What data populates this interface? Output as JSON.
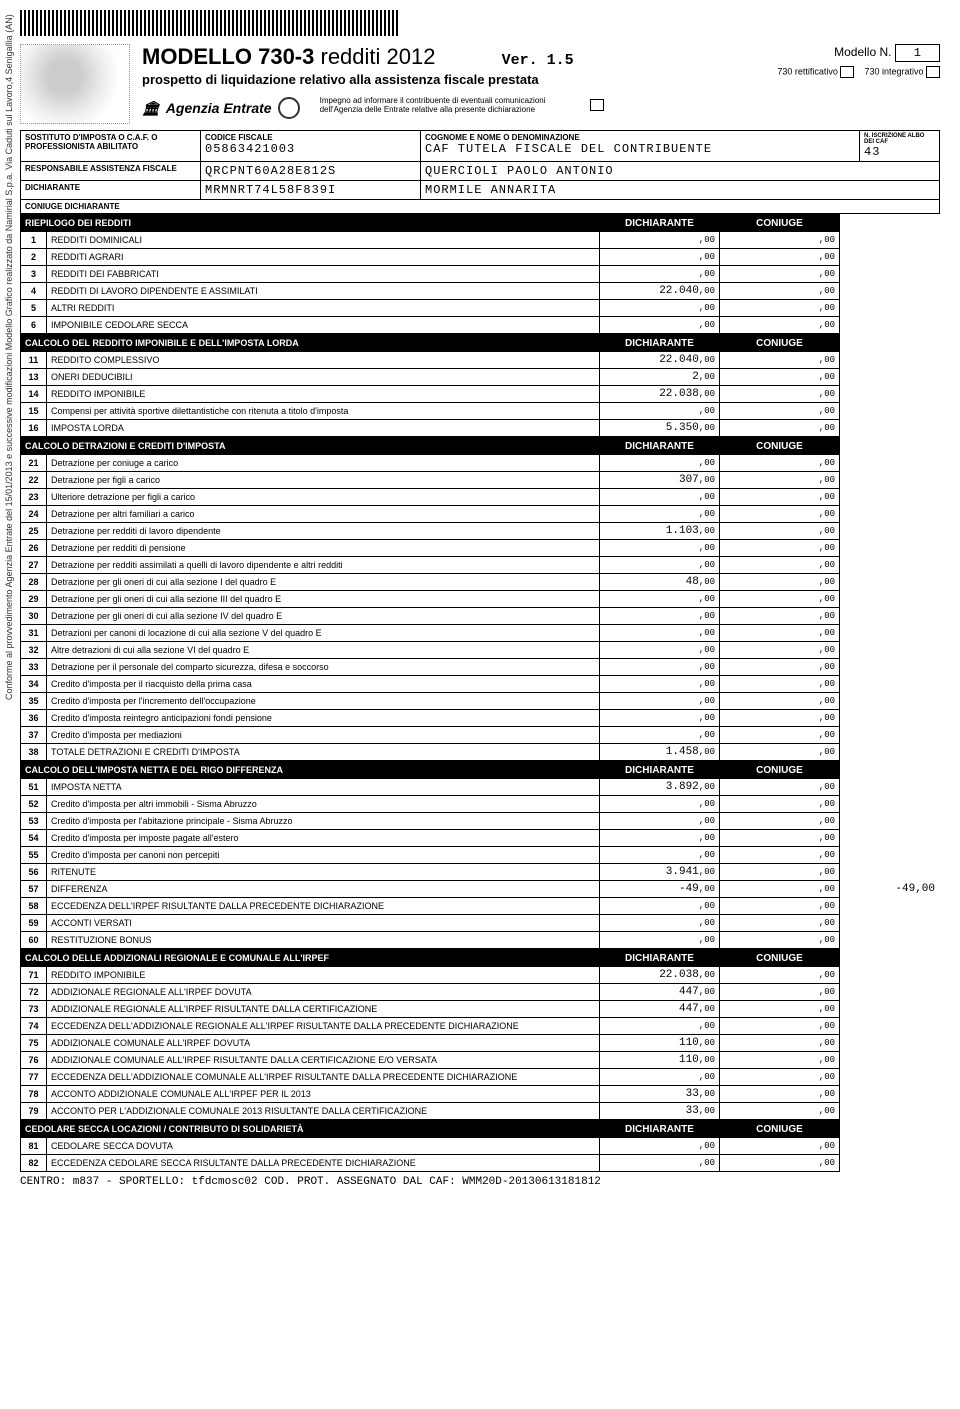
{
  "side_text": "Conforme al provvedimento Agenzia Entrate del 15/01/2013 e successive modificazioni   Modello Grafico realizzato da Namirial S.p.a. Via Caduti sul Lavoro,4 Senigallia (AN)",
  "title": {
    "a": "MODELLO 730-3",
    "b": "redditi 2012"
  },
  "subtitle": "prospetto di liquidazione relativo alla assistenza fiscale prestata",
  "agenzia": "Agenzia Entrate",
  "ver": "Ver. 1.5",
  "modello_n_lbl": "Modello N.",
  "modello_n_val": "1",
  "impegno": "Impegno ad informare il contribuente di eventuali comunicazioni dell'Agenzia delle Entrate relative alla presente dichiarazione",
  "rett_lbl": "730 rettificativo",
  "integ_lbl": "730 integrativo",
  "info": {
    "r1c1_lbl": "SOSTITUTO D'IMPOSTA O C.A.F. O PROFESSIONISTA ABILITATO",
    "r1c2_lbl": "CODICE FISCALE",
    "r1c2_val": "05863421003",
    "r1c3_lbl": "COGNOME E NOME O DENOMINAZIONE",
    "r1c3_val": "CAF TUTELA FISCALE DEL CONTRIBUENTE",
    "r1c4_lbl": "N. ISCRIZIONE ALBO DEI CAF",
    "r1c4_val": "43",
    "r2c1_lbl": "RESPONSABILE ASSISTENZA FISCALE",
    "r2c2_val": "QRCPNT60A28E812S",
    "r2c3_val": "QUERCIOLI PAOLO ANTONIO",
    "r3c1_lbl": "DICHIARANTE",
    "r3c2_val": "MRMNRT74L58F839I",
    "r3c3_val": "MORMILE ANNARITA",
    "r4c1_lbl": "CONIUGE DICHIARANTE"
  },
  "col_dich": "DICHIARANTE",
  "col_con": "CONIUGE",
  "sections": [
    {
      "title": "RIEPILOGO DEI REDDITI",
      "rows": [
        {
          "n": "1",
          "d": "REDDITI DOMINICALI",
          "a": ",00",
          "b": ",00"
        },
        {
          "n": "2",
          "d": "REDDITI AGRARI",
          "a": ",00",
          "b": ",00"
        },
        {
          "n": "3",
          "d": "REDDITI DEI FABBRICATI",
          "a": ",00",
          "b": ",00"
        },
        {
          "n": "4",
          "d": "REDDITI DI LAVORO DIPENDENTE E ASSIMILATI",
          "a": "22.040,00",
          "b": ",00"
        },
        {
          "n": "5",
          "d": "ALTRI REDDITI",
          "a": ",00",
          "b": ",00"
        },
        {
          "n": "6",
          "d": "IMPONIBILE CEDOLARE SECCA",
          "a": ",00",
          "b": ",00"
        }
      ]
    },
    {
      "title": "CALCOLO DEL REDDITO IMPONIBILE E DELL'IMPOSTA LORDA",
      "rows": [
        {
          "n": "11",
          "d": "REDDITO COMPLESSIVO",
          "a": "22.040,00",
          "b": ",00"
        },
        {
          "n": "13",
          "d": "ONERI DEDUCIBILI",
          "a": "2,00",
          "b": ",00"
        },
        {
          "n": "14",
          "d": "REDDITO IMPONIBILE",
          "a": "22.038,00",
          "b": ",00"
        },
        {
          "n": "15",
          "d": "Compensi per attività sportive dilettantistiche con ritenuta a titolo d'imposta",
          "a": ",00",
          "b": ",00"
        },
        {
          "n": "16",
          "d": "IMPOSTA LORDA",
          "a": "5.350,00",
          "b": ",00"
        }
      ]
    },
    {
      "title": "CALCOLO DETRAZIONI E CREDITI D'IMPOSTA",
      "rows": [
        {
          "n": "21",
          "d": "Detrazione per coniuge a carico",
          "a": ",00",
          "b": ",00"
        },
        {
          "n": "22",
          "d": "Detrazione per figli a carico",
          "a": "307,00",
          "b": ",00"
        },
        {
          "n": "23",
          "d": "Ulteriore detrazione per figli a carico",
          "a": ",00",
          "b": ",00"
        },
        {
          "n": "24",
          "d": "Detrazione per altri familiari a carico",
          "a": ",00",
          "b": ",00"
        },
        {
          "n": "25",
          "d": "Detrazione per redditi di lavoro dipendente",
          "a": "1.103,00",
          "b": ",00"
        },
        {
          "n": "26",
          "d": "Detrazione per redditi di pensione",
          "a": ",00",
          "b": ",00"
        },
        {
          "n": "27",
          "d": "Detrazione per redditi assimilati a quelli di lavoro dipendente e altri redditi",
          "a": ",00",
          "b": ",00"
        },
        {
          "n": "28",
          "d": "Detrazione per gli oneri di cui alla sezione I del quadro E",
          "a": "48,00",
          "b": ",00"
        },
        {
          "n": "29",
          "d": "Detrazione per gli oneri di cui alla sezione III del quadro E",
          "a": ",00",
          "b": ",00"
        },
        {
          "n": "30",
          "d": "Detrazione per gli oneri di cui alla sezione IV del quadro E",
          "a": ",00",
          "b": ",00"
        },
        {
          "n": "31",
          "d": "Detrazioni per canoni di locazione di cui alla sezione V del quadro E",
          "a": ",00",
          "b": ",00"
        },
        {
          "n": "32",
          "d": "Altre detrazioni di cui alla sezione VI del quadro E",
          "a": ",00",
          "b": ",00"
        },
        {
          "n": "33",
          "d": "Detrazione per il personale del comparto sicurezza, difesa e soccorso",
          "a": ",00",
          "b": ",00"
        },
        {
          "n": "34",
          "d": "Credito d'imposta per il riacquisto della prima casa",
          "a": ",00",
          "b": ",00"
        },
        {
          "n": "35",
          "d": "Credito d'imposta per l'incremento dell'occupazione",
          "a": ",00",
          "b": ",00"
        },
        {
          "n": "36",
          "d": "Credito d'imposta reintegro anticipazioni fondi pensione",
          "a": ",00",
          "b": ",00"
        },
        {
          "n": "37",
          "d": "Credito d'imposta per mediazioni",
          "a": ",00",
          "b": ",00"
        },
        {
          "n": "38",
          "d": "TOTALE DETRAZIONI E CREDITI D'IMPOSTA",
          "a": "1.458,00",
          "b": ",00"
        }
      ]
    },
    {
      "title": "CALCOLO DELL'IMPOSTA NETTA E DEL RIGO DIFFERENZA",
      "rows": [
        {
          "n": "51",
          "d": "IMPOSTA NETTA",
          "a": "3.892,00",
          "b": ",00"
        },
        {
          "n": "52",
          "d": "Credito d'imposta per altri immobili - Sisma Abruzzo",
          "a": ",00",
          "b": ",00"
        },
        {
          "n": "53",
          "d": "Credito d'imposta per l'abitazione principale - Sisma Abruzzo",
          "a": ",00",
          "b": ",00"
        },
        {
          "n": "54",
          "d": "Credito d'imposta per imposte pagate all'estero",
          "a": ",00",
          "b": ",00"
        },
        {
          "n": "55",
          "d": "Credito d'imposta per canoni non percepiti",
          "a": ",00",
          "b": ",00"
        },
        {
          "n": "56",
          "d": "RITENUTE",
          "a": "3.941,00",
          "b": ",00"
        },
        {
          "n": "57",
          "d": "DIFFERENZA",
          "a": "-49,00",
          "b": ",00",
          "extra": "-49,00"
        },
        {
          "n": "58",
          "d": "ECCEDENZA DELL'IRPEF RISULTANTE DALLA PRECEDENTE DICHIARAZIONE",
          "a": ",00",
          "b": ",00"
        },
        {
          "n": "59",
          "d": "ACCONTI VERSATI",
          "a": ",00",
          "b": ",00"
        },
        {
          "n": "60",
          "d": "RESTITUZIONE BONUS",
          "a": ",00",
          "b": ",00"
        }
      ]
    },
    {
      "title": "CALCOLO DELLE ADDIZIONALI REGIONALE E COMUNALE ALL'IRPEF",
      "rows": [
        {
          "n": "71",
          "d": "REDDITO IMPONIBILE",
          "a": "22.038,00",
          "b": ",00"
        },
        {
          "n": "72",
          "d": "ADDIZIONALE REGIONALE ALL'IRPEF DOVUTA",
          "a": "447,00",
          "b": ",00"
        },
        {
          "n": "73",
          "d": "ADDIZIONALE REGIONALE ALL'IRPEF RISULTANTE DALLA CERTIFICAZIONE",
          "a": "447,00",
          "b": ",00"
        },
        {
          "n": "74",
          "d": "ECCEDENZA DELL'ADDIZIONALE REGIONALE ALL'IRPEF RISULTANTE DALLA PRECEDENTE DICHIARAZIONE",
          "a": ",00",
          "b": ",00"
        },
        {
          "n": "75",
          "d": "ADDIZIONALE COMUNALE ALL'IRPEF DOVUTA",
          "a": "110,00",
          "b": ",00"
        },
        {
          "n": "76",
          "d": "ADDIZIONALE COMUNALE ALL'IRPEF RISULTANTE DALLA CERTIFICAZIONE E/O VERSATA",
          "a": "110,00",
          "b": ",00"
        },
        {
          "n": "77",
          "d": "ECCEDENZA DELL'ADDIZIONALE COMUNALE ALL'IRPEF RISULTANTE DALLA PRECEDENTE DICHIARAZIONE",
          "a": ",00",
          "b": ",00"
        },
        {
          "n": "78",
          "d": "ACCONTO ADDIZIONALE COMUNALE ALL'IRPEF PER IL 2013",
          "a": "33,00",
          "b": ",00"
        },
        {
          "n": "79",
          "d": "ACCONTO PER L'ADDIZIONALE COMUNALE 2013 RISULTANTE DALLA CERTIFICAZIONE",
          "a": "33,00",
          "b": ",00"
        }
      ]
    },
    {
      "title": "CEDOLARE SECCA LOCAZIONI / CONTRIBUTO DI SOLIDARIETÀ",
      "rows": [
        {
          "n": "81",
          "d": "CEDOLARE SECCA DOVUTA",
          "a": ",00",
          "b": ",00"
        },
        {
          "n": "82",
          "d": "ECCEDENZA CEDOLARE SECCA RISULTANTE DALLA PRECEDENTE DICHIARAZIONE",
          "a": ",00",
          "b": ",00"
        }
      ]
    }
  ],
  "footer": "CENTRO: m837 - SPORTELLO: tfdcmosc02 COD. PROT. ASSEGNATO DAL CAF: WMM20D-20130613181812"
}
